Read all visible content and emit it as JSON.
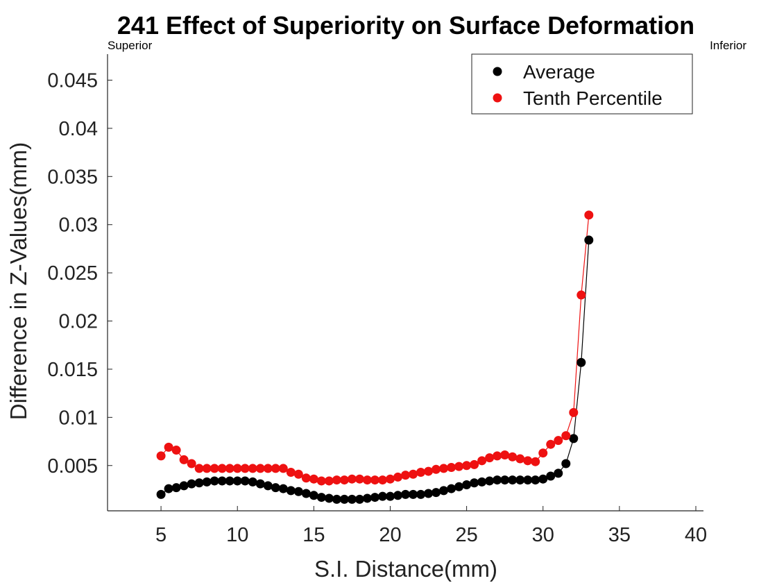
{
  "chart_data": {
    "type": "line",
    "title": "241  Effect of Superiority on Surface Deformation",
    "xlabel": "S.I. Distance(mm)",
    "ylabel": "Difference in Z-Values(mm)",
    "annotations": {
      "left": "Superior",
      "right": "Inferior"
    },
    "xlim": [
      1.5,
      40.5
    ],
    "ylim": [
      0.0003,
      0.0477
    ],
    "xticks": [
      "5",
      "10",
      "15",
      "20",
      "25",
      "30",
      "35",
      "40"
    ],
    "xtick_values": [
      5,
      10,
      15,
      20,
      25,
      30,
      35,
      40
    ],
    "yticks": [
      "0.005",
      "0.01",
      "0.015",
      "0.02",
      "0.025",
      "0.03",
      "0.035",
      "0.04",
      "0.045"
    ],
    "ytick_values": [
      0.005,
      0.01,
      0.015,
      0.02,
      0.025,
      0.03,
      0.035,
      0.04,
      0.045
    ],
    "legend_position": "top-right",
    "grid": false,
    "x": [
      5,
      5.5,
      6,
      6.5,
      7,
      7.5,
      8,
      8.5,
      9,
      9.5,
      10,
      10.5,
      11,
      11.5,
      12,
      12.5,
      13,
      13.5,
      14,
      14.5,
      15,
      15.5,
      16,
      16.5,
      17,
      17.5,
      18,
      18.5,
      19,
      19.5,
      20,
      20.5,
      21,
      21.5,
      22,
      22.5,
      23,
      23.5,
      24,
      24.5,
      25,
      25.5,
      26,
      26.5,
      27,
      27.5,
      28,
      28.5,
      29,
      29.5,
      30,
      30.5,
      31,
      31.5,
      32,
      32.5,
      33
    ],
    "series": [
      {
        "name": "Average",
        "color": "#000000",
        "values": [
          0.002,
          0.0026,
          0.0027,
          0.0029,
          0.0031,
          0.0032,
          0.0033,
          0.0034,
          0.0034,
          0.0034,
          0.0034,
          0.0034,
          0.0033,
          0.0031,
          0.0029,
          0.0027,
          0.0026,
          0.0024,
          0.0023,
          0.0021,
          0.0019,
          0.0017,
          0.0016,
          0.0015,
          0.0015,
          0.0015,
          0.0015,
          0.0016,
          0.0017,
          0.0018,
          0.0018,
          0.0019,
          0.002,
          0.002,
          0.002,
          0.0021,
          0.0022,
          0.0024,
          0.0026,
          0.0028,
          0.003,
          0.0032,
          0.0033,
          0.0034,
          0.0035,
          0.0035,
          0.0035,
          0.0035,
          0.0035,
          0.0035,
          0.0036,
          0.0039,
          0.0042,
          0.0052,
          0.0078,
          0.0157,
          0.0284
        ]
      },
      {
        "name": "Tenth Percentile",
        "color": "#ee1111",
        "values": [
          0.006,
          0.0069,
          0.0066,
          0.0056,
          0.0052,
          0.0047,
          0.0047,
          0.0047,
          0.0047,
          0.0047,
          0.0047,
          0.0047,
          0.0047,
          0.0047,
          0.0047,
          0.0047,
          0.0047,
          0.0043,
          0.0041,
          0.0037,
          0.0036,
          0.0034,
          0.0034,
          0.0035,
          0.0035,
          0.0036,
          0.0036,
          0.0035,
          0.0035,
          0.0035,
          0.0036,
          0.0038,
          0.004,
          0.0041,
          0.0043,
          0.0044,
          0.0046,
          0.0047,
          0.0048,
          0.0049,
          0.005,
          0.0051,
          0.0055,
          0.0058,
          0.006,
          0.0061,
          0.0059,
          0.0057,
          0.0055,
          0.0054,
          0.0063,
          0.0072,
          0.0076,
          0.0081,
          0.0105,
          0.0227,
          0.031
        ]
      }
    ]
  }
}
